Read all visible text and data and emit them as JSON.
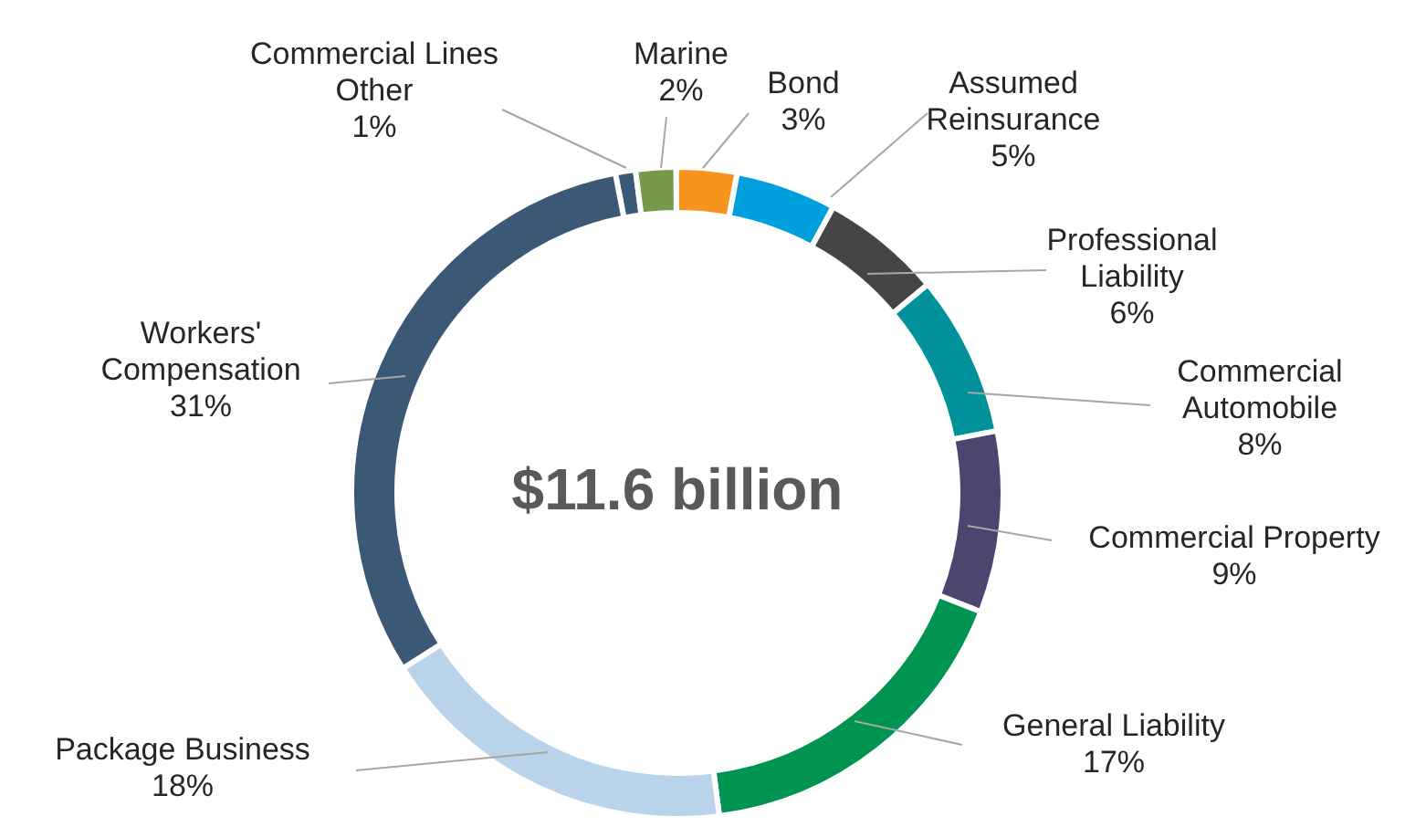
{
  "chart_data": {
    "type": "donut",
    "categories": [
      "Commercial Lines Other",
      "Marine",
      "Bond",
      "Assumed Reinsurance",
      "Professional Liability",
      "Commercial Automobile",
      "Commercial Property",
      "General Liability",
      "Package Business",
      "Workers' Compensation"
    ],
    "values": [
      1,
      2,
      3,
      5,
      6,
      8,
      9,
      17,
      18,
      31
    ],
    "colors": [
      "#3b5876",
      "#76994a",
      "#f7941d",
      "#00a0dc",
      "#454545",
      "#00919a",
      "#4d4470",
      "#009452",
      "#b8d3ea",
      "#3b5876"
    ],
    "value_labels": [
      "1%",
      "2%",
      "3%",
      "5%",
      "6%",
      "8%",
      "9%",
      "17%",
      "18%",
      "31%"
    ],
    "annotations": [
      "$11.6 billion"
    ],
    "legend": false
  }
}
